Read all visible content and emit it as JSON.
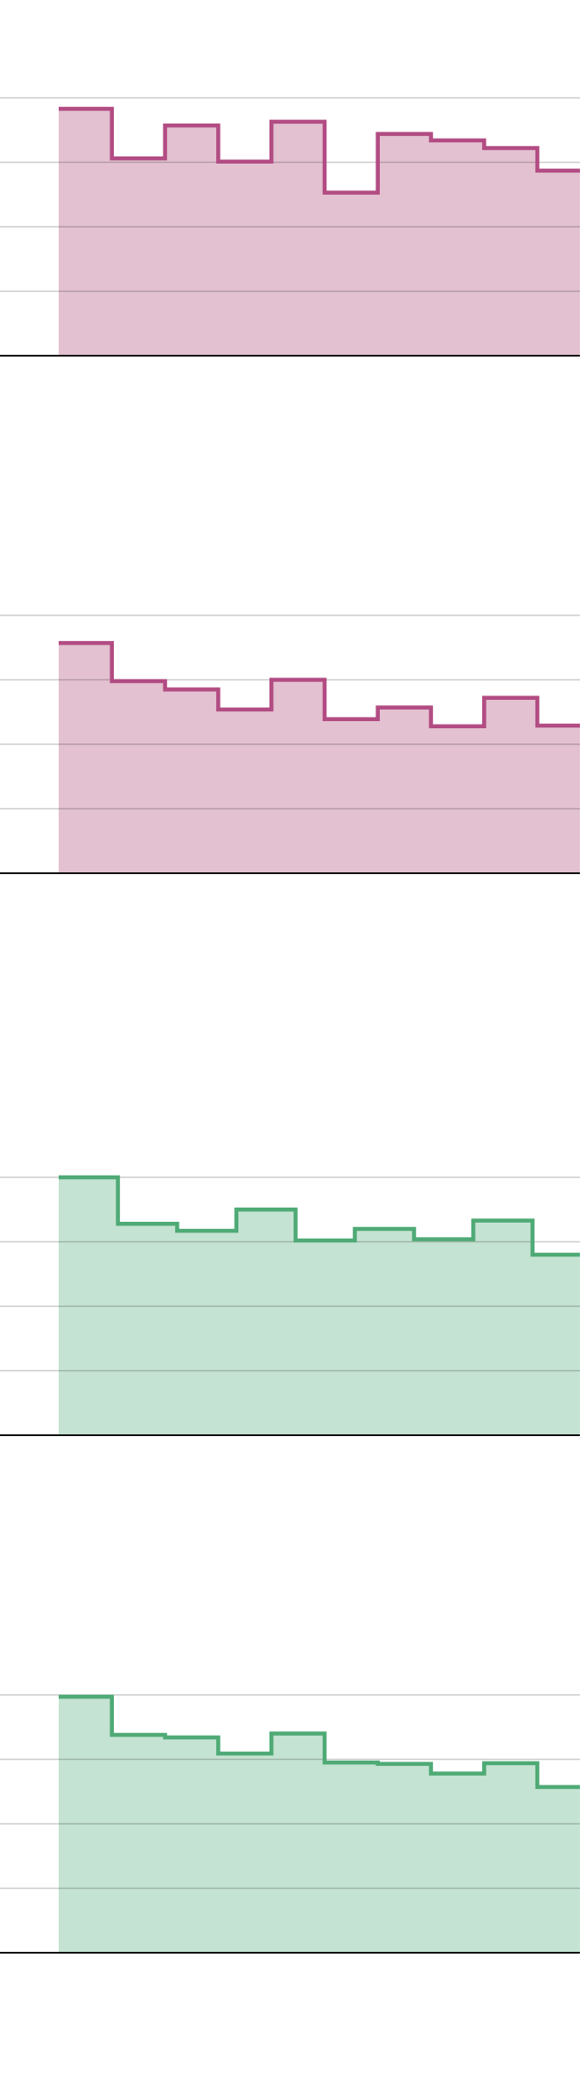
{
  "chart_data": [
    {
      "type": "area",
      "step": true,
      "color": "#B24C83",
      "fill": "#E3C1D0",
      "ylim": [
        0,
        4
      ],
      "grid": true,
      "series": [
        {
          "values": [
            3.83,
            3.06,
            3.57,
            3.01,
            3.63,
            2.53,
            3.44,
            3.34,
            3.22,
            2.87
          ]
        }
      ]
    },
    {
      "type": "area",
      "step": true,
      "color": "#B24C83",
      "fill": "#E3C1D0",
      "ylim": [
        0,
        4
      ],
      "grid": true,
      "series": [
        {
          "values": [
            3.57,
            2.98,
            2.85,
            2.54,
            3.0,
            2.39,
            2.57,
            2.28,
            2.72,
            2.29
          ]
        }
      ]
    },
    {
      "type": "area",
      "step": true,
      "color": "#4FAA76",
      "fill": "#C5E3D2",
      "ylim": [
        0,
        4
      ],
      "grid": true,
      "series": [
        {
          "values": [
            4.0,
            3.28,
            3.17,
            3.5,
            3.02,
            3.2,
            3.04,
            3.33,
            2.8
          ]
        }
      ]
    },
    {
      "type": "area",
      "step": true,
      "color": "#4FAA76",
      "fill": "#C5E3D2",
      "ylim": [
        0,
        4
      ],
      "grid": true,
      "series": [
        {
          "values": [
            3.97,
            3.38,
            3.34,
            3.09,
            3.4,
            2.95,
            2.93,
            2.78,
            2.94,
            2.57
          ]
        }
      ]
    }
  ]
}
